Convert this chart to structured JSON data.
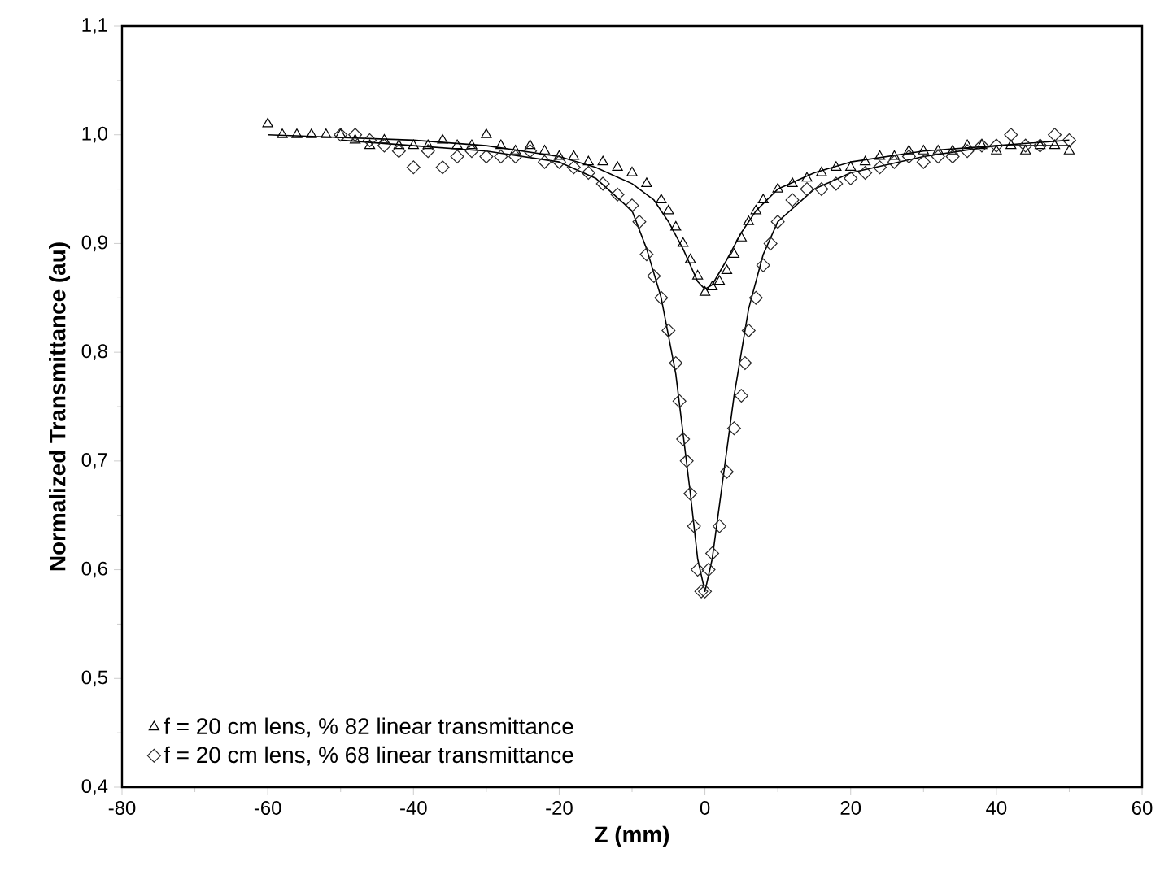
{
  "chart_data": {
    "type": "scatter",
    "xlabel": "Z (mm)",
    "ylabel": "Normalized Transmittance (au)",
    "xlim": [
      -80,
      60
    ],
    "ylim": [
      0.4,
      1.1
    ],
    "xticks": [
      -80,
      -60,
      -40,
      -20,
      0,
      20,
      40,
      60
    ],
    "yticks": [
      {
        "value": 0.4,
        "label": "0,4"
      },
      {
        "value": 0.5,
        "label": "0,5"
      },
      {
        "value": 0.6,
        "label": "0,6"
      },
      {
        "value": 0.7,
        "label": "0,7"
      },
      {
        "value": 0.8,
        "label": "0,8"
      },
      {
        "value": 0.9,
        "label": "0,9"
      },
      {
        "value": 1.0,
        "label": "1,0"
      },
      {
        "value": 1.1,
        "label": "1,1"
      }
    ],
    "grid": false,
    "legend": "bottom left",
    "series": [
      {
        "name": "f = 20 cm lens, % 82 linear transmittance",
        "color": "#000000",
        "marker": "triangle",
        "x": [
          -60,
          -58,
          -56,
          -54,
          -52,
          -50,
          -48,
          -46,
          -44,
          -42,
          -40,
          -38,
          -36,
          -34,
          -32,
          -30,
          -28,
          -26,
          -24,
          -22,
          -20,
          -18,
          -16,
          -14,
          -12,
          -10,
          -8,
          -6,
          -5,
          -4,
          -3,
          -2,
          -1,
          0,
          1,
          2,
          3,
          4,
          5,
          6,
          7,
          8,
          10,
          12,
          14,
          16,
          18,
          20,
          22,
          24,
          26,
          28,
          30,
          32,
          34,
          36,
          38,
          40,
          42,
          44,
          46,
          48,
          50
        ],
        "values": [
          1.01,
          1.0,
          1.0,
          1.0,
          1.0,
          1.0,
          0.995,
          0.99,
          0.995,
          0.99,
          0.99,
          0.99,
          0.995,
          0.99,
          0.99,
          1.0,
          0.99,
          0.985,
          0.99,
          0.985,
          0.98,
          0.98,
          0.975,
          0.975,
          0.97,
          0.965,
          0.955,
          0.94,
          0.93,
          0.915,
          0.9,
          0.885,
          0.87,
          0.855,
          0.86,
          0.865,
          0.875,
          0.89,
          0.905,
          0.92,
          0.93,
          0.94,
          0.95,
          0.955,
          0.96,
          0.965,
          0.97,
          0.97,
          0.975,
          0.98,
          0.98,
          0.985,
          0.985,
          0.985,
          0.985,
          0.99,
          0.99,
          0.985,
          0.99,
          0.985,
          0.99,
          0.99,
          0.985
        ]
      },
      {
        "name": "f = 20 cm lens, % 68 linear transmittance",
        "color": "#262626",
        "marker": "diamond",
        "x": [
          -50,
          -48,
          -46,
          -44,
          -42,
          -40,
          -38,
          -36,
          -34,
          -32,
          -30,
          -28,
          -26,
          -24,
          -22,
          -20,
          -18,
          -16,
          -14,
          -12,
          -10,
          -9,
          -8,
          -7,
          -6,
          -5,
          -4,
          -3.5,
          -3,
          -2.5,
          -2,
          -1.5,
          -1,
          -0.5,
          0,
          0.5,
          1,
          2,
          3,
          4,
          5,
          5.5,
          6,
          7,
          8,
          9,
          10,
          12,
          14,
          16,
          18,
          20,
          22,
          24,
          26,
          28,
          30,
          32,
          34,
          36,
          38,
          40,
          42,
          44,
          46,
          48,
          50
        ],
        "values": [
          1.0,
          1.0,
          0.995,
          0.99,
          0.985,
          0.97,
          0.985,
          0.97,
          0.98,
          0.985,
          0.98,
          0.98,
          0.98,
          0.985,
          0.975,
          0.975,
          0.97,
          0.965,
          0.955,
          0.945,
          0.935,
          0.92,
          0.89,
          0.87,
          0.85,
          0.82,
          0.79,
          0.755,
          0.72,
          0.7,
          0.67,
          0.64,
          0.6,
          0.58,
          0.58,
          0.6,
          0.615,
          0.64,
          0.69,
          0.73,
          0.76,
          0.79,
          0.82,
          0.85,
          0.88,
          0.9,
          0.92,
          0.94,
          0.95,
          0.95,
          0.955,
          0.96,
          0.965,
          0.97,
          0.975,
          0.98,
          0.975,
          0.98,
          0.98,
          0.985,
          0.99,
          0.99,
          1.0,
          0.99,
          0.99,
          1.0,
          0.995
        ]
      },
      {
        "type": "line",
        "color": "#000000",
        "marker": "none",
        "line_style": "solid",
        "x": [
          -60,
          -40,
          -30,
          -20,
          -15,
          -10,
          -7,
          -5,
          -3,
          -1,
          0,
          1,
          3,
          5,
          7,
          10,
          15,
          20,
          30,
          40,
          50
        ],
        "values": [
          1.0,
          0.995,
          0.99,
          0.98,
          0.97,
          0.955,
          0.94,
          0.92,
          0.895,
          0.865,
          0.858,
          0.862,
          0.885,
          0.91,
          0.93,
          0.95,
          0.965,
          0.975,
          0.985,
          0.99,
          0.99
        ]
      },
      {
        "type": "line",
        "color": "#000000",
        "marker": "none",
        "line_style": "solid",
        "x": [
          -50,
          -40,
          -30,
          -20,
          -15,
          -10,
          -8,
          -6,
          -4,
          -2,
          -1,
          0,
          1,
          2,
          4,
          6,
          8,
          10,
          15,
          20,
          30,
          40,
          50
        ],
        "values": [
          0.995,
          0.99,
          0.985,
          0.975,
          0.96,
          0.93,
          0.895,
          0.85,
          0.78,
          0.67,
          0.61,
          0.58,
          0.61,
          0.66,
          0.76,
          0.84,
          0.89,
          0.92,
          0.95,
          0.965,
          0.98,
          0.99,
          0.995
        ]
      }
    ]
  }
}
